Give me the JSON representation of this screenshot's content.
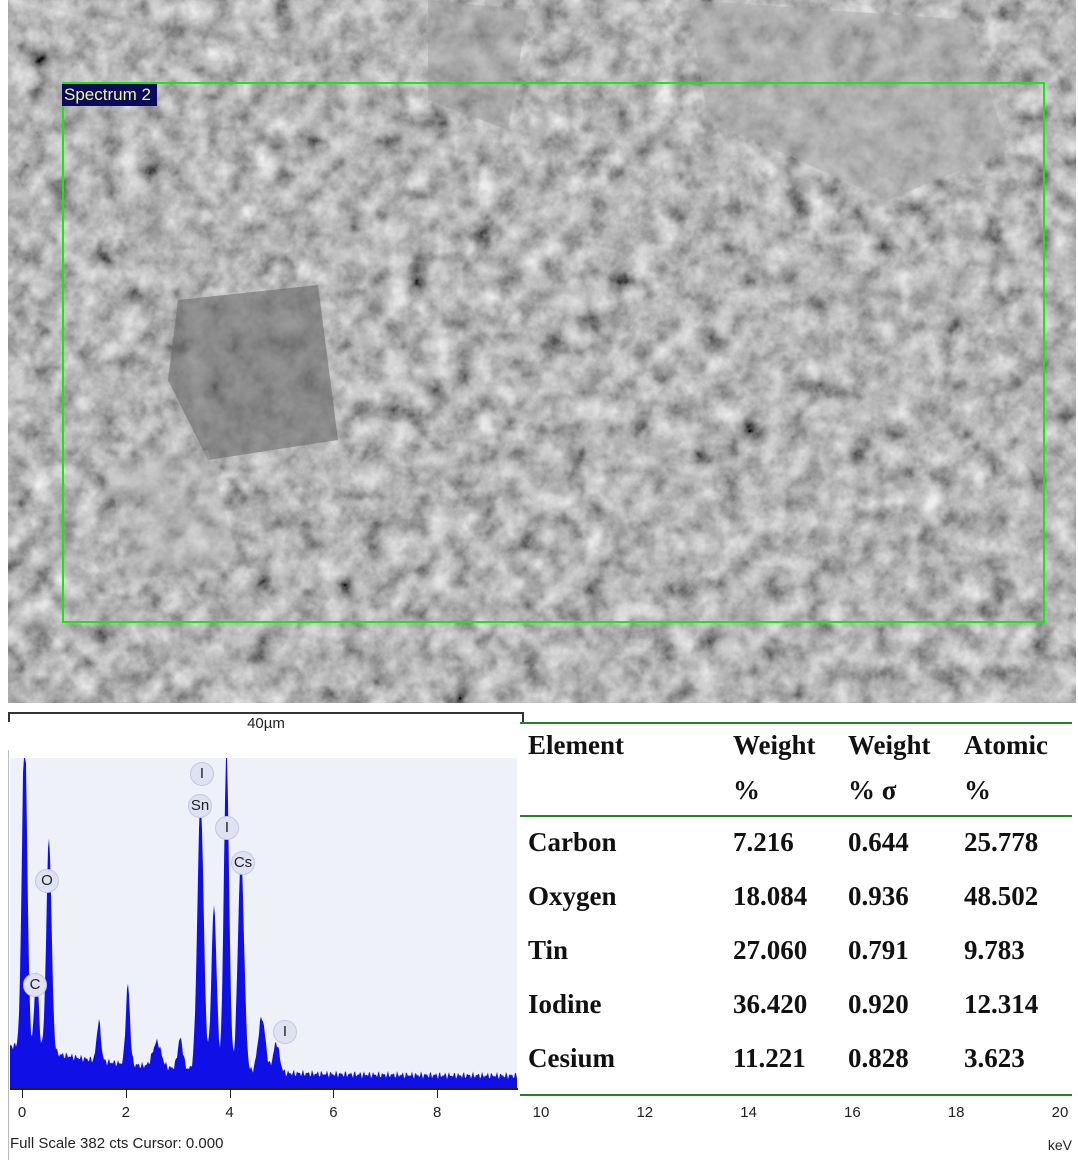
{
  "image": {
    "roi_label": "Spectrum 2",
    "scale_bar_label": "40µm",
    "roi_color": "#19e619"
  },
  "spectrum": {
    "x_ticks": [
      "0",
      "2",
      "4",
      "6",
      "8",
      "10",
      "12",
      "14",
      "16",
      "18",
      "20"
    ],
    "x_unit": "keV",
    "footer": "Full Scale 382 cts Cursor: 0.000",
    "fill_color": "#1010e6",
    "peak_labels": [
      {
        "text": "C"
      },
      {
        "text": "O"
      },
      {
        "text": "I"
      },
      {
        "text": "Sn"
      },
      {
        "text": "I"
      },
      {
        "text": "Cs"
      },
      {
        "text": "I"
      }
    ]
  },
  "table": {
    "headers": [
      {
        "line1": "Element",
        "line2": ""
      },
      {
        "line1": "Weight",
        "line2": "%"
      },
      {
        "line1": "Weight",
        "line2": "% σ"
      },
      {
        "line1": "Atomic",
        "line2": "%"
      }
    ],
    "rows": [
      [
        "Carbon",
        "7.216",
        "0.644",
        "25.778"
      ],
      [
        "Oxygen",
        "18.084",
        "0.936",
        "48.502"
      ],
      [
        "Tin",
        "27.060",
        "0.791",
        "9.783"
      ],
      [
        "Iodine",
        "36.420",
        "0.920",
        "12.314"
      ],
      [
        "Cesium",
        "11.221",
        "0.828",
        "3.623"
      ]
    ]
  }
}
